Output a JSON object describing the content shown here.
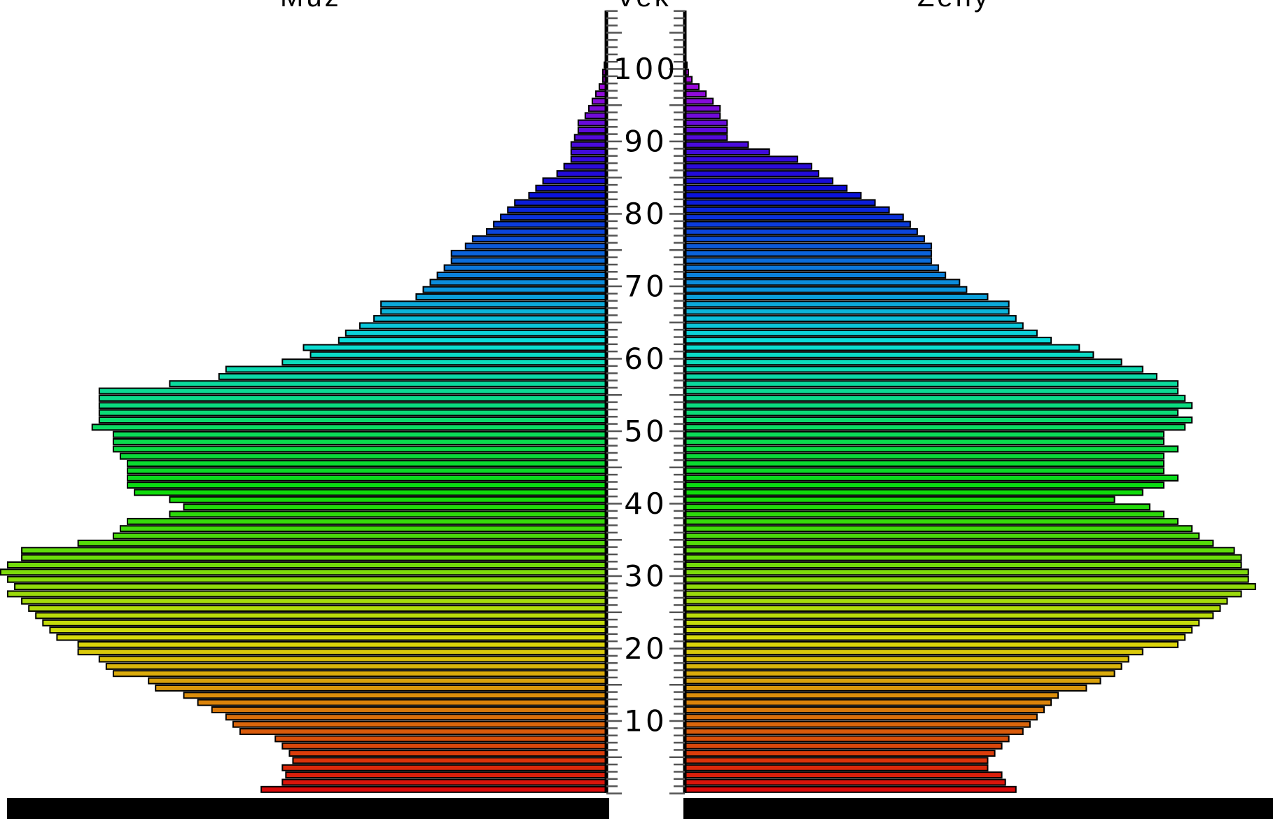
{
  "headers": {
    "left": "Muž",
    "center": "Vek",
    "right": "Ženy"
  },
  "chart_data": {
    "type": "bar",
    "orientation": "horizontal-pyramid",
    "title": "",
    "xlabel": "",
    "ylabel": "Vek",
    "age_ticks": [
      "10",
      "20",
      "30",
      "40",
      "50",
      "60",
      "70",
      "80",
      "90",
      "100"
    ],
    "ylim": [
      0,
      108
    ],
    "xlim_per_side": [
      0,
      850
    ],
    "categories_note": "ages 0-100, one bar per year",
    "series": [
      {
        "name": "Muž",
        "side": "left",
        "values": [
          490,
          460,
          455,
          460,
          445,
          450,
          460,
          470,
          520,
          530,
          540,
          560,
          580,
          600,
          640,
          650,
          700,
          710,
          720,
          750,
          750,
          780,
          790,
          800,
          810,
          820,
          830,
          850,
          840,
          850,
          860,
          850,
          830,
          830,
          750,
          700,
          690,
          680,
          620,
          600,
          620,
          670,
          680,
          680,
          680,
          680,
          690,
          700,
          700,
          700,
          730,
          720,
          720,
          720,
          720,
          720,
          620,
          550,
          540,
          460,
          420,
          430,
          380,
          370,
          350,
          330,
          320,
          320,
          270,
          260,
          250,
          240,
          230,
          220,
          220,
          200,
          190,
          170,
          160,
          150,
          140,
          130,
          110,
          100,
          90,
          70,
          60,
          50,
          50,
          50,
          45,
          40,
          40,
          30,
          25,
          20,
          15,
          10,
          5,
          5,
          3
        ]
      },
      {
        "name": "Ženy",
        "side": "right",
        "values": [
          470,
          455,
          450,
          430,
          430,
          440,
          450,
          460,
          480,
          490,
          500,
          510,
          520,
          530,
          570,
          590,
          610,
          620,
          630,
          650,
          700,
          710,
          720,
          730,
          750,
          760,
          770,
          790,
          810,
          800,
          800,
          790,
          790,
          780,
          750,
          730,
          720,
          700,
          680,
          660,
          610,
          650,
          680,
          700,
          680,
          680,
          680,
          700,
          680,
          680,
          710,
          720,
          700,
          720,
          710,
          700,
          700,
          670,
          650,
          620,
          580,
          560,
          520,
          500,
          480,
          470,
          460,
          460,
          430,
          400,
          390,
          370,
          360,
          350,
          350,
          350,
          340,
          330,
          320,
          310,
          290,
          270,
          250,
          230,
          210,
          190,
          180,
          160,
          120,
          90,
          60,
          60,
          60,
          50,
          50,
          40,
          30,
          20,
          10,
          5,
          3
        ]
      }
    ],
    "bar_colors": "rainbow gradient from red (age 0) through yellow, green, cyan, blue to magenta (age 100)",
    "grid": false,
    "legend": "none"
  }
}
